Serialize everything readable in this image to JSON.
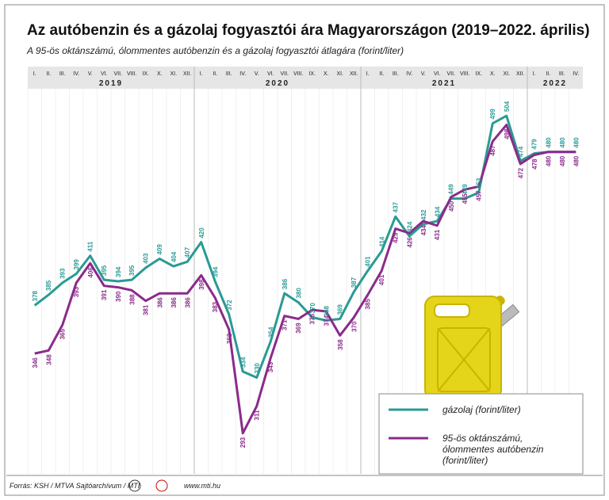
{
  "chart_data": {
    "type": "line",
    "title": "Az autóbenzin és a gázolaj fogyasztói ára Magyarországon (2019–2022. április)",
    "subtitle": "A 95-ös oktánszámú, ólommentes autóbenzin és a gázolaj fogyasztói átlagára (forint/liter)",
    "categories": [
      "I.",
      "II.",
      "III.",
      "IV.",
      "V.",
      "VI.",
      "VII.",
      "VIII.",
      "IX.",
      "X.",
      "XI.",
      "XII.",
      "I.",
      "II.",
      "III.",
      "IV.",
      "V.",
      "VI.",
      "VII.",
      "VIII.",
      "IX.",
      "X.",
      "XI.",
      "XII.",
      "I.",
      "II.",
      "III.",
      "IV.",
      "V.",
      "VI.",
      "VII.",
      "VIII.",
      "IX.",
      "X.",
      "XI.",
      "XII.",
      "I.",
      "II.",
      "III.",
      "IV."
    ],
    "years": [
      "2019",
      "2020",
      "2021",
      "2022"
    ],
    "series": [
      {
        "name": "gázolaj (forint/liter)",
        "color": "#2a9a94",
        "values": [
          378,
          385,
          393,
          399,
          411,
          395,
          394,
          395,
          403,
          409,
          404,
          407,
          420,
          394,
          372,
          334,
          330,
          354,
          386,
          380,
          370,
          368,
          369,
          387,
          401,
          414,
          437,
          424,
          432,
          434,
          449,
          449,
          453,
          499,
          504,
          474,
          479,
          480,
          480,
          480
        ]
      },
      {
        "name": "95-ös oktánszámú, ólommentes autóbenzin (forint/liter)",
        "color": "#8b2a8b",
        "values": [
          346,
          348,
          365,
          393,
          406,
          391,
          390,
          388,
          381,
          386,
          386,
          386,
          398,
          383,
          362,
          293,
          311,
          343,
          371,
          369,
          375,
          374,
          358,
          370,
          385,
          401,
          429,
          426,
          434,
          431,
          450,
          455,
          457,
          487,
          498,
          472,
          478,
          480,
          480,
          480
        ]
      }
    ],
    "ylim": [
      266,
      522
    ],
    "source": "Forrás: KSH / MTVA Sajtóarchívum / MTI",
    "url": "www.mti.hu"
  }
}
